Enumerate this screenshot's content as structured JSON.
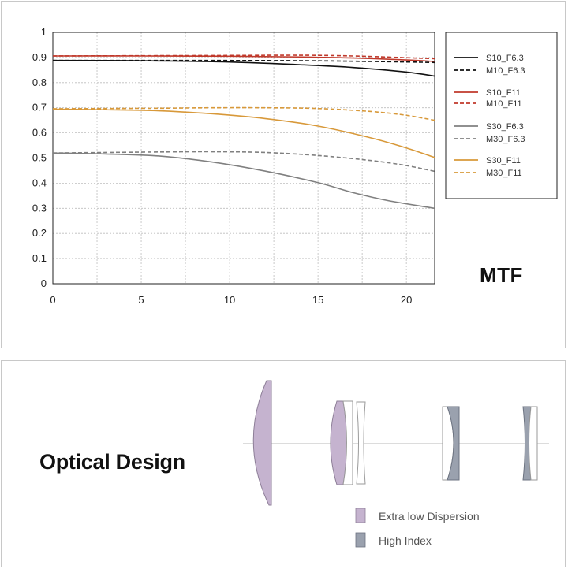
{
  "chart_data": {
    "type": "line",
    "title": "MTF",
    "xlim": [
      0,
      21.6
    ],
    "ylim": [
      0,
      1
    ],
    "x_ticks": [
      0,
      5,
      10,
      15,
      20
    ],
    "y_ticks": [
      0,
      0.1,
      0.2,
      0.3,
      0.4,
      0.5,
      0.6,
      0.7,
      0.8,
      0.9,
      1
    ],
    "y_tick_labels": [
      "0",
      "0.1",
      "0.2",
      "0.3",
      "0.4",
      "0.5",
      "0.6",
      "0.7",
      "0.8",
      "0.9",
      "1"
    ],
    "grid": true,
    "legend_position": "right",
    "series": [
      {
        "name": "S10_F6.3",
        "color": "#111111",
        "dash": false,
        "points": [
          [
            0,
            0.888
          ],
          [
            5,
            0.887
          ],
          [
            10,
            0.882
          ],
          [
            14,
            0.871
          ],
          [
            17,
            0.86
          ],
          [
            20,
            0.842
          ],
          [
            21.6,
            0.826
          ]
        ]
      },
      {
        "name": "M10_F6.3",
        "color": "#111111",
        "dash": true,
        "points": [
          [
            0,
            0.888
          ],
          [
            5,
            0.888
          ],
          [
            10,
            0.888
          ],
          [
            14,
            0.887
          ],
          [
            17,
            0.885
          ],
          [
            20,
            0.882
          ],
          [
            21.6,
            0.88
          ]
        ]
      },
      {
        "name": "S10_F11",
        "color": "#c0392b",
        "dash": false,
        "points": [
          [
            0,
            0.906
          ],
          [
            5,
            0.906
          ],
          [
            10,
            0.905
          ],
          [
            14,
            0.902
          ],
          [
            17,
            0.898
          ],
          [
            20,
            0.89
          ],
          [
            21.6,
            0.884
          ]
        ]
      },
      {
        "name": "M10_F11",
        "color": "#c0392b",
        "dash": true,
        "points": [
          [
            0,
            0.906
          ],
          [
            5,
            0.907
          ],
          [
            10,
            0.908
          ],
          [
            14,
            0.909
          ],
          [
            17,
            0.906
          ],
          [
            20,
            0.899
          ],
          [
            21.6,
            0.895
          ]
        ]
      },
      {
        "name": "S30_F6.3",
        "color": "#808080",
        "dash": false,
        "points": [
          [
            0,
            0.52
          ],
          [
            3,
            0.516
          ],
          [
            6,
            0.508
          ],
          [
            9,
            0.484
          ],
          [
            12,
            0.448
          ],
          [
            15,
            0.402
          ],
          [
            17,
            0.362
          ],
          [
            19,
            0.33
          ],
          [
            21.6,
            0.3
          ]
        ]
      },
      {
        "name": "M30_F6.3",
        "color": "#808080",
        "dash": true,
        "points": [
          [
            0,
            0.52
          ],
          [
            3,
            0.522
          ],
          [
            6,
            0.524
          ],
          [
            9,
            0.525
          ],
          [
            12,
            0.522
          ],
          [
            15,
            0.51
          ],
          [
            18,
            0.49
          ],
          [
            20,
            0.47
          ],
          [
            21.6,
            0.447
          ]
        ]
      },
      {
        "name": "S30_F11",
        "color": "#d8993a",
        "dash": false,
        "points": [
          [
            0,
            0.694
          ],
          [
            3,
            0.692
          ],
          [
            6,
            0.688
          ],
          [
            9,
            0.676
          ],
          [
            12,
            0.657
          ],
          [
            15,
            0.627
          ],
          [
            18,
            0.58
          ],
          [
            20,
            0.54
          ],
          [
            21.6,
            0.502
          ]
        ]
      },
      {
        "name": "M30_F11",
        "color": "#d8993a",
        "dash": true,
        "points": [
          [
            0,
            0.696
          ],
          [
            3,
            0.697
          ],
          [
            6,
            0.698
          ],
          [
            9,
            0.7
          ],
          [
            12,
            0.7
          ],
          [
            15,
            0.697
          ],
          [
            18,
            0.685
          ],
          [
            20,
            0.67
          ],
          [
            21.6,
            0.65
          ]
        ]
      }
    ]
  },
  "optical": {
    "title": "Optical Design",
    "legend": [
      {
        "label": "Extra low Dispersion",
        "color": "#c5b3cf"
      },
      {
        "label": "High Index",
        "color": "#9aa1ae"
      }
    ]
  }
}
